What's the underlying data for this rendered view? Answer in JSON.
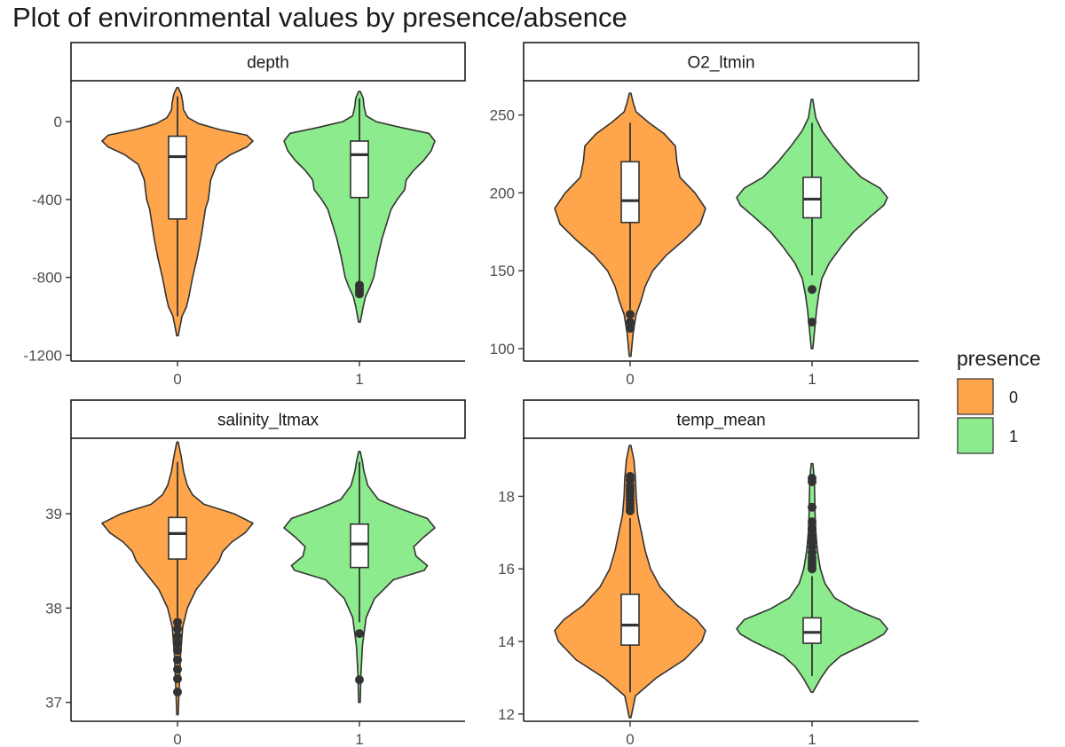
{
  "title": "Plot of environmental values by presence/absence",
  "colors": {
    "absent": "#FFA64D",
    "present": "#8CEB8C",
    "outline": "#333333"
  },
  "legend": {
    "title": "presence",
    "entries": [
      {
        "label": "0",
        "color": "#FFA64D"
      },
      {
        "label": "1",
        "color": "#8CEB8C"
      }
    ]
  },
  "chart_data": [
    {
      "type": "violin",
      "facet": "depth",
      "categories": [
        "0",
        "1"
      ],
      "ylim": [
        -1230,
        210
      ],
      "yticks": [
        0,
        -400,
        -800,
        -1200
      ],
      "series": [
        {
          "group": "0",
          "density": [
            [
              -1100,
              0.01
            ],
            [
              -1000,
              0.06
            ],
            [
              -950,
              0.12
            ],
            [
              -900,
              0.15
            ],
            [
              -800,
              0.2
            ],
            [
              -700,
              0.26
            ],
            [
              -600,
              0.31
            ],
            [
              -500,
              0.35
            ],
            [
              -450,
              0.37
            ],
            [
              -400,
              0.41
            ],
            [
              -300,
              0.44
            ],
            [
              -220,
              0.52
            ],
            [
              -170,
              0.7
            ],
            [
              -130,
              0.92
            ],
            [
              -100,
              1.0
            ],
            [
              -70,
              0.92
            ],
            [
              -40,
              0.55
            ],
            [
              -10,
              0.28
            ],
            [
              20,
              0.14
            ],
            [
              60,
              0.08
            ],
            [
              100,
              0.07
            ],
            [
              140,
              0.05
            ],
            [
              175,
              0.01
            ]
          ],
          "box": {
            "q1": -500,
            "median": -180,
            "q3": -75,
            "whisker_low": -1000,
            "whisker_high": 130
          },
          "outliers": []
        },
        {
          "group": "1",
          "density": [
            [
              -1030,
              0.01
            ],
            [
              -950,
              0.05
            ],
            [
              -900,
              0.08
            ],
            [
              -850,
              0.14
            ],
            [
              -800,
              0.19
            ],
            [
              -700,
              0.24
            ],
            [
              -600,
              0.3
            ],
            [
              -500,
              0.38
            ],
            [
              -450,
              0.42
            ],
            [
              -400,
              0.5
            ],
            [
              -350,
              0.6
            ],
            [
              -300,
              0.62
            ],
            [
              -250,
              0.72
            ],
            [
              -200,
              0.85
            ],
            [
              -150,
              0.95
            ],
            [
              -100,
              1.0
            ],
            [
              -60,
              0.92
            ],
            [
              -30,
              0.55
            ],
            [
              0,
              0.22
            ],
            [
              30,
              0.09
            ],
            [
              80,
              0.06
            ],
            [
              120,
              0.05
            ],
            [
              155,
              0.01
            ]
          ],
          "box": {
            "q1": -390,
            "median": -170,
            "q3": -100,
            "whisker_low": -830,
            "whisker_high": 120
          },
          "outliers": [
            -840,
            -855,
            -870,
            -885
          ]
        }
      ]
    },
    {
      "type": "violin",
      "facet": "O2_ltmin",
      "categories": [
        "0",
        "1"
      ],
      "ylim": [
        92,
        272
      ],
      "yticks": [
        100,
        150,
        200,
        250
      ],
      "series": [
        {
          "group": "0",
          "density": [
            [
              95,
              0.01
            ],
            [
              110,
              0.04
            ],
            [
              122,
              0.08
            ],
            [
              130,
              0.14
            ],
            [
              140,
              0.2
            ],
            [
              150,
              0.3
            ],
            [
              160,
              0.48
            ],
            [
              170,
              0.72
            ],
            [
              180,
              0.93
            ],
            [
              190,
              1.0
            ],
            [
              200,
              0.86
            ],
            [
              210,
              0.66
            ],
            [
              220,
              0.62
            ],
            [
              230,
              0.6
            ],
            [
              238,
              0.45
            ],
            [
              245,
              0.25
            ],
            [
              252,
              0.08
            ],
            [
              258,
              0.04
            ],
            [
              264,
              0.01
            ]
          ],
          "box": {
            "q1": 181,
            "median": 195,
            "q3": 220,
            "whisker_low": 125,
            "whisker_high": 245
          },
          "outliers": [
            113,
            117,
            122
          ]
        },
        {
          "group": "1",
          "density": [
            [
              100,
              0.01
            ],
            [
              115,
              0.04
            ],
            [
              125,
              0.06
            ],
            [
              135,
              0.09
            ],
            [
              145,
              0.13
            ],
            [
              155,
              0.23
            ],
            [
              165,
              0.38
            ],
            [
              175,
              0.55
            ],
            [
              185,
              0.78
            ],
            [
              192,
              0.95
            ],
            [
              197,
              1.0
            ],
            [
              203,
              0.9
            ],
            [
              210,
              0.65
            ],
            [
              220,
              0.45
            ],
            [
              230,
              0.28
            ],
            [
              240,
              0.13
            ],
            [
              248,
              0.05
            ],
            [
              254,
              0.03
            ],
            [
              260,
              0.01
            ]
          ],
          "box": {
            "q1": 184,
            "median": 196,
            "q3": 210,
            "whisker_low": 147,
            "whisker_high": 245
          },
          "outliers": [
            117,
            138
          ]
        }
      ]
    },
    {
      "type": "violin",
      "facet": "salinity_ltmax",
      "categories": [
        "0",
        "1"
      ],
      "ylim": [
        36.8,
        39.8
      ],
      "yticks": [
        37,
        38,
        39
      ],
      "series": [
        {
          "group": "0",
          "density": [
            [
              36.87,
              0.01
            ],
            [
              37.1,
              0.02
            ],
            [
              37.5,
              0.04
            ],
            [
              37.8,
              0.07
            ],
            [
              38.0,
              0.13
            ],
            [
              38.2,
              0.25
            ],
            [
              38.4,
              0.45
            ],
            [
              38.5,
              0.55
            ],
            [
              38.6,
              0.6
            ],
            [
              38.7,
              0.72
            ],
            [
              38.8,
              0.9
            ],
            [
              38.9,
              1.0
            ],
            [
              39.0,
              0.75
            ],
            [
              39.1,
              0.35
            ],
            [
              39.2,
              0.2
            ],
            [
              39.3,
              0.13
            ],
            [
              39.45,
              0.08
            ],
            [
              39.6,
              0.05
            ],
            [
              39.76,
              0.01
            ]
          ],
          "box": {
            "q1": 38.52,
            "median": 38.79,
            "q3": 38.96,
            "whisker_low": 37.9,
            "whisker_high": 39.55
          },
          "outliers": [
            37.11,
            37.25,
            37.35,
            37.45,
            37.55,
            37.63,
            37.7,
            37.78,
            37.85
          ]
        },
        {
          "group": "1",
          "density": [
            [
              37.0,
              0.01
            ],
            [
              37.3,
              0.02
            ],
            [
              37.6,
              0.04
            ],
            [
              37.9,
              0.09
            ],
            [
              38.1,
              0.2
            ],
            [
              38.3,
              0.45
            ],
            [
              38.4,
              0.86
            ],
            [
              38.45,
              0.9
            ],
            [
              38.55,
              0.75
            ],
            [
              38.65,
              0.72
            ],
            [
              38.75,
              0.85
            ],
            [
              38.85,
              1.0
            ],
            [
              38.95,
              0.9
            ],
            [
              39.05,
              0.55
            ],
            [
              39.15,
              0.25
            ],
            [
              39.3,
              0.11
            ],
            [
              39.45,
              0.06
            ],
            [
              39.55,
              0.04
            ],
            [
              39.66,
              0.01
            ]
          ],
          "box": {
            "q1": 38.43,
            "median": 38.68,
            "q3": 38.89,
            "whisker_low": 37.85,
            "whisker_high": 39.55
          },
          "outliers": [
            37.24,
            37.73
          ]
        }
      ]
    },
    {
      "type": "violin",
      "facet": "temp_mean",
      "categories": [
        "0",
        "1"
      ],
      "ylim": [
        11.8,
        19.6
      ],
      "yticks": [
        12,
        14,
        16,
        18
      ],
      "series": [
        {
          "group": "0",
          "density": [
            [
              11.9,
              0.01
            ],
            [
              12.5,
              0.07
            ],
            [
              13.0,
              0.35
            ],
            [
              13.5,
              0.72
            ],
            [
              14.0,
              0.95
            ],
            [
              14.3,
              1.0
            ],
            [
              14.6,
              0.88
            ],
            [
              15.0,
              0.62
            ],
            [
              15.5,
              0.4
            ],
            [
              16.0,
              0.27
            ],
            [
              16.5,
              0.2
            ],
            [
              17.0,
              0.15
            ],
            [
              17.5,
              0.1
            ],
            [
              18.0,
              0.08
            ],
            [
              18.5,
              0.07
            ],
            [
              19.0,
              0.05
            ],
            [
              19.4,
              0.01
            ]
          ],
          "box": {
            "q1": 13.9,
            "median": 14.45,
            "q3": 15.3,
            "whisker_low": 12.6,
            "whisker_high": 17.4
          },
          "outliers": [
            17.6,
            17.7,
            17.8,
            17.9,
            18.0,
            18.1,
            18.2,
            18.3,
            18.45,
            18.55
          ]
        },
        {
          "group": "1",
          "density": [
            [
              12.6,
              0.01
            ],
            [
              13.0,
              0.12
            ],
            [
              13.3,
              0.22
            ],
            [
              13.6,
              0.38
            ],
            [
              14.0,
              0.78
            ],
            [
              14.2,
              0.95
            ],
            [
              14.35,
              1.0
            ],
            [
              14.6,
              0.9
            ],
            [
              14.9,
              0.55
            ],
            [
              15.2,
              0.3
            ],
            [
              15.6,
              0.17
            ],
            [
              16.0,
              0.11
            ],
            [
              16.5,
              0.07
            ],
            [
              17.0,
              0.05
            ],
            [
              17.5,
              0.04
            ],
            [
              18.0,
              0.035
            ],
            [
              18.5,
              0.03
            ],
            [
              18.9,
              0.01
            ]
          ],
          "box": {
            "q1": 13.95,
            "median": 14.25,
            "q3": 14.65,
            "whisker_low": 13.05,
            "whisker_high": 15.8
          },
          "outliers": [
            16.0,
            16.1,
            16.2,
            16.3,
            16.45,
            16.6,
            16.75,
            16.9,
            17.1,
            17.3,
            17.7,
            18.4,
            18.5
          ]
        }
      ]
    }
  ]
}
